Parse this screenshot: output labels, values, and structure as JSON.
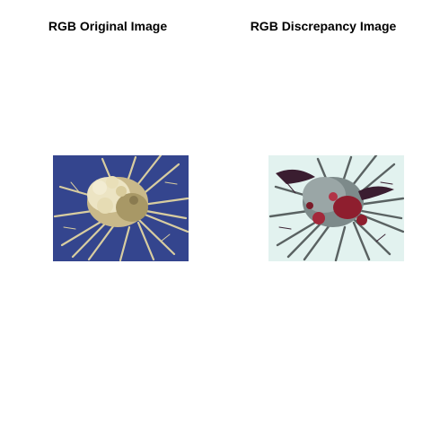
{
  "panels": [
    {
      "title": "RGB Original Image",
      "image": "cell-micrograph-original",
      "background_color": "#34458e",
      "subject_color": "#d8cda0"
    },
    {
      "title": "RGB Discrepancy Image",
      "image": "cell-micrograph-discrepancy",
      "background_color": "#e2f2ef",
      "subject_color": "#6b7a7a",
      "accent_color": "#8e1e2e"
    }
  ]
}
